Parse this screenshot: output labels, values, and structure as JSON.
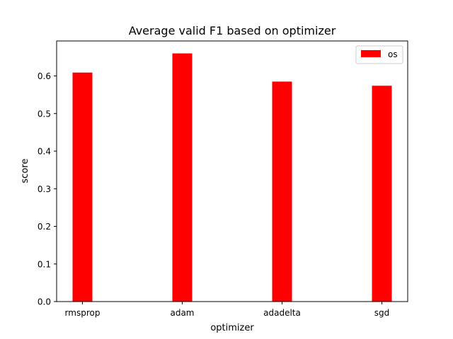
{
  "chart_data": {
    "type": "bar",
    "title": "Average valid F1 based on optimizer",
    "xlabel": "optimizer",
    "ylabel": "score",
    "categories": [
      "rmsprop",
      "adam",
      "adadelta",
      "sgd"
    ],
    "series": [
      {
        "name": "os",
        "values": [
          0.609,
          0.66,
          0.585,
          0.574
        ],
        "color": "#ff0000"
      }
    ],
    "ylim": [
      0,
      0.693
    ],
    "yticks": [
      "0.0",
      "0.1",
      "0.2",
      "0.3",
      "0.4",
      "0.5",
      "0.6"
    ],
    "grid": false,
    "legend_position": "top-right"
  }
}
